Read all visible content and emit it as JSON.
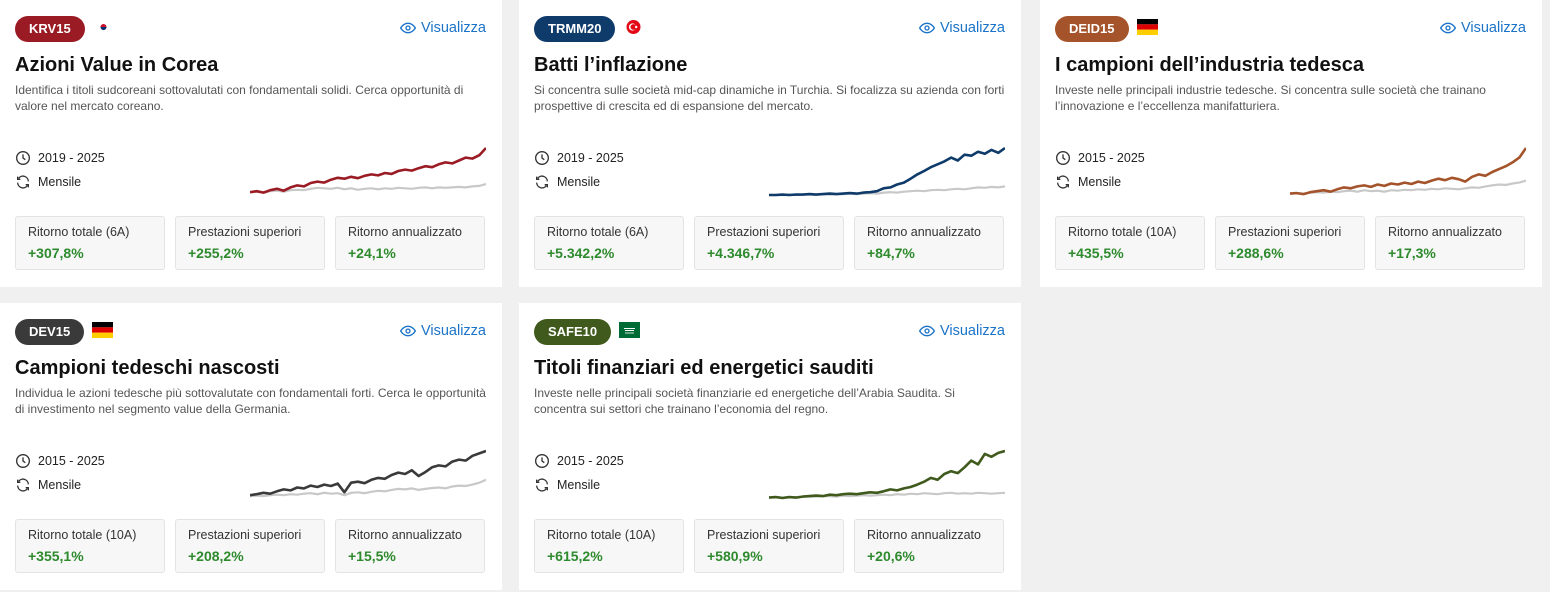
{
  "common": {
    "view_label": "Visualizza",
    "outperform_label": "Prestazioni superiori",
    "annualized_label": "Ritorno annualizzato",
    "positive_color": "#2d8a2d",
    "link_color": "#1a73c8"
  },
  "cards": [
    {
      "code": "KRV15",
      "badge_color": "#9b1b24",
      "flag": "korea-flag-icon",
      "title": "Azioni Value in Corea",
      "description": "Identifica i titoli sudcoreani sottovalutati con fondamentali solidi. Cerca opportunità di valore nel mercato coreano.",
      "period": "2019 - 2025",
      "frequency": "Mensile",
      "total_label": "Ritorno totale (6A)",
      "total_return": "+307,8%",
      "outperformance": "+255,2%",
      "annualized": "+24,1%",
      "line_color": "#9b1b24",
      "series": [
        0.08,
        0.1,
        0.07,
        0.12,
        0.15,
        0.11,
        0.18,
        0.22,
        0.2,
        0.27,
        0.3,
        0.28,
        0.34,
        0.38,
        0.36,
        0.4,
        0.37,
        0.42,
        0.45,
        0.43,
        0.48,
        0.46,
        0.52,
        0.55,
        0.53,
        0.58,
        0.62,
        0.6,
        0.66,
        0.7,
        0.68,
        0.74,
        0.8,
        0.78,
        0.85,
        1.0
      ],
      "bench": [
        0.08,
        0.09,
        0.07,
        0.1,
        0.11,
        0.09,
        0.12,
        0.13,
        0.12,
        0.15,
        0.17,
        0.16,
        0.15,
        0.17,
        0.14,
        0.16,
        0.13,
        0.15,
        0.16,
        0.14,
        0.16,
        0.15,
        0.17,
        0.16,
        0.15,
        0.17,
        0.18,
        0.16,
        0.18,
        0.17,
        0.18,
        0.19,
        0.18,
        0.2,
        0.21,
        0.25
      ]
    },
    {
      "code": "TRMM20",
      "badge_color": "#0f3b6b",
      "flag": "turkey-flag-icon",
      "title": "Batti l’inflazione",
      "description": "Si concentra sulle società mid-cap dinamiche in Turchia. Si focalizza su azienda con forti prospettive di crescita ed di espansione del mercato.",
      "period": "2019 - 2025",
      "frequency": "Mensile",
      "total_label": "Ritorno totale (6A)",
      "total_return": "+5.342,2%",
      "outperformance": "+4.346,7%",
      "annualized": "+84,7%",
      "line_color": "#0f3b6b",
      "series": [
        0.02,
        0.02,
        0.03,
        0.02,
        0.03,
        0.03,
        0.04,
        0.03,
        0.04,
        0.05,
        0.04,
        0.05,
        0.06,
        0.05,
        0.07,
        0.08,
        0.1,
        0.16,
        0.18,
        0.24,
        0.28,
        0.36,
        0.45,
        0.52,
        0.6,
        0.66,
        0.72,
        0.8,
        0.74,
        0.86,
        0.84,
        0.92,
        0.88,
        0.96,
        0.9,
        1.0
      ],
      "bench": [
        0.02,
        0.02,
        0.02,
        0.03,
        0.02,
        0.03,
        0.03,
        0.03,
        0.04,
        0.03,
        0.04,
        0.04,
        0.05,
        0.04,
        0.05,
        0.06,
        0.05,
        0.07,
        0.08,
        0.07,
        0.09,
        0.1,
        0.11,
        0.1,
        0.12,
        0.13,
        0.12,
        0.14,
        0.15,
        0.14,
        0.16,
        0.18,
        0.17,
        0.19,
        0.18,
        0.2
      ]
    },
    {
      "code": "DEID15",
      "badge_color": "#a4532a",
      "flag": "germany-flag-icon",
      "title": "I campioni dell’industria tedesca",
      "description": "Investe nelle principali industrie tedesche. Si concentra sulle società che trainano l’innovazione e l’eccellenza manifatturiera.",
      "period": "2015 - 2025",
      "frequency": "Mensile",
      "total_label": "Ritorno totale (10A)",
      "total_return": "+435,5%",
      "outperformance": "+288,6%",
      "annualized": "+17,3%",
      "line_color": "#a4532a",
      "series": [
        0.05,
        0.06,
        0.04,
        0.08,
        0.1,
        0.12,
        0.09,
        0.14,
        0.18,
        0.16,
        0.2,
        0.22,
        0.19,
        0.24,
        0.21,
        0.26,
        0.24,
        0.28,
        0.25,
        0.3,
        0.27,
        0.32,
        0.36,
        0.33,
        0.38,
        0.35,
        0.3,
        0.4,
        0.45,
        0.42,
        0.5,
        0.56,
        0.62,
        0.7,
        0.8,
        1.0
      ],
      "bench": [
        0.05,
        0.06,
        0.05,
        0.07,
        0.08,
        0.07,
        0.09,
        0.08,
        0.1,
        0.11,
        0.09,
        0.12,
        0.1,
        0.11,
        0.09,
        0.12,
        0.11,
        0.13,
        0.12,
        0.14,
        0.13,
        0.15,
        0.14,
        0.16,
        0.15,
        0.14,
        0.16,
        0.18,
        0.17,
        0.2,
        0.22,
        0.24,
        0.23,
        0.26,
        0.28,
        0.32
      ]
    },
    {
      "code": "DEV15",
      "badge_color": "#3a3a3a",
      "flag": "germany-flag-icon",
      "title": "Campioni tedeschi nascosti",
      "description": "Individua le azioni tedesche più sottovalutate con fondamentali forti. Cerca le opportunità di investimento nel segmento value della Germania.",
      "period": "2015 - 2025",
      "frequency": "Mensile",
      "total_label": "Ritorno totale (10A)",
      "total_return": "+355,1%",
      "outperformance": "+208,2%",
      "annualized": "+15,5%",
      "line_color": "#3a3a3a",
      "series": [
        0.08,
        0.1,
        0.13,
        0.11,
        0.16,
        0.2,
        0.18,
        0.24,
        0.22,
        0.28,
        0.25,
        0.3,
        0.27,
        0.32,
        0.14,
        0.34,
        0.36,
        0.33,
        0.4,
        0.44,
        0.42,
        0.5,
        0.55,
        0.52,
        0.6,
        0.48,
        0.56,
        0.66,
        0.7,
        0.68,
        0.78,
        0.82,
        0.8,
        0.9,
        0.95,
        1.0
      ],
      "bench": [
        0.06,
        0.07,
        0.06,
        0.08,
        0.09,
        0.08,
        0.1,
        0.09,
        0.11,
        0.12,
        0.1,
        0.13,
        0.11,
        0.12,
        0.08,
        0.13,
        0.14,
        0.12,
        0.15,
        0.17,
        0.16,
        0.19,
        0.21,
        0.2,
        0.22,
        0.19,
        0.21,
        0.23,
        0.24,
        0.22,
        0.26,
        0.28,
        0.27,
        0.3,
        0.34,
        0.4
      ]
    },
    {
      "code": "SAFE10",
      "badge_color": "#3f5a1c",
      "flag": "saudi-flag-icon",
      "title": "Titoli finanziari ed energetici sauditi",
      "description": "Investe nelle principali società finanziarie ed energetiche dell’Arabia Saudita. Si concentra sui settori che trainano l’economia del regno.",
      "period": "2015 - 2025",
      "frequency": "Mensile",
      "total_label": "Ritorno totale (10A)",
      "total_return": "+615,2%",
      "outperformance": "+580,9%",
      "annualized": "+20,6%",
      "line_color": "#3f5a1c",
      "series": [
        0.03,
        0.04,
        0.02,
        0.04,
        0.03,
        0.05,
        0.06,
        0.07,
        0.06,
        0.09,
        0.08,
        0.1,
        0.11,
        0.1,
        0.12,
        0.14,
        0.13,
        0.16,
        0.2,
        0.18,
        0.22,
        0.25,
        0.3,
        0.36,
        0.44,
        0.4,
        0.52,
        0.58,
        0.54,
        0.66,
        0.8,
        0.72,
        0.94,
        0.88,
        0.96,
        1.0
      ],
      "bench": [
        0.04,
        0.04,
        0.03,
        0.04,
        0.04,
        0.05,
        0.05,
        0.05,
        0.06,
        0.06,
        0.05,
        0.07,
        0.06,
        0.07,
        0.08,
        0.07,
        0.08,
        0.09,
        0.08,
        0.1,
        0.09,
        0.11,
        0.1,
        0.12,
        0.11,
        0.1,
        0.12,
        0.13,
        0.11,
        0.12,
        0.11,
        0.13,
        0.12,
        0.11,
        0.12,
        0.13
      ]
    }
  ]
}
